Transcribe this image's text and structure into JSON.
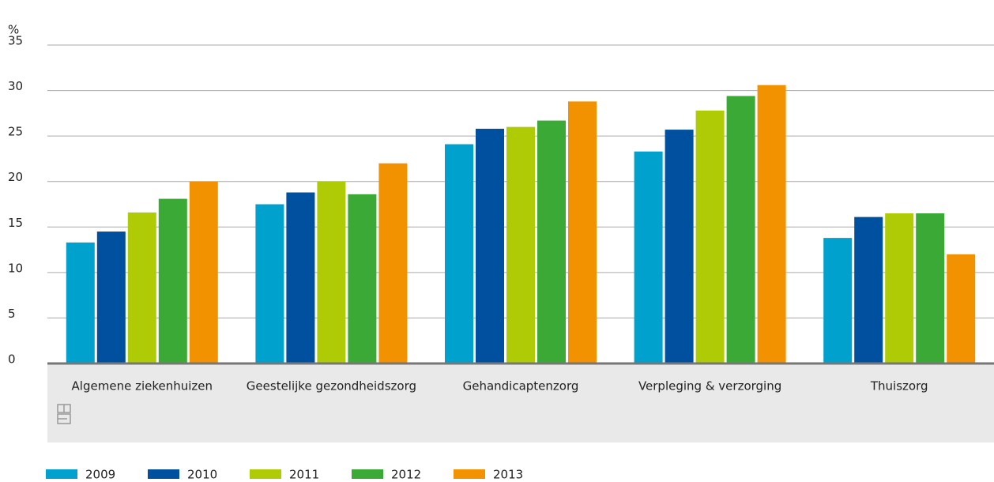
{
  "chart_data": {
    "type": "bar",
    "y_label": "%",
    "categories": [
      "Algemene ziekenhuizen",
      "Geestelijke gezondheidszorg",
      "Gehandicaptenzorg",
      "Verpleging & verzorging",
      "Thuiszorg"
    ],
    "series": [
      {
        "name": "2009",
        "color": "#00a1cd",
        "values": [
          13.3,
          17.5,
          24.1,
          23.3,
          13.8
        ]
      },
      {
        "name": "2010",
        "color": "#0050a0",
        "values": [
          14.5,
          18.8,
          25.8,
          25.7,
          16.1
        ]
      },
      {
        "name": "2011",
        "color": "#afcb05",
        "values": [
          16.6,
          20.0,
          26.0,
          27.8,
          16.5
        ]
      },
      {
        "name": "2012",
        "color": "#3aa935",
        "values": [
          18.1,
          18.6,
          26.7,
          29.4,
          16.5
        ]
      },
      {
        "name": "2013",
        "color": "#f39200",
        "values": [
          20.0,
          22.0,
          28.8,
          30.6,
          12.0
        ]
      }
    ],
    "ylim": [
      0,
      35
    ],
    "yticks": [
      0,
      5,
      10,
      15,
      20,
      25,
      30,
      35
    ],
    "grid": true,
    "legend": "bottom-left"
  }
}
